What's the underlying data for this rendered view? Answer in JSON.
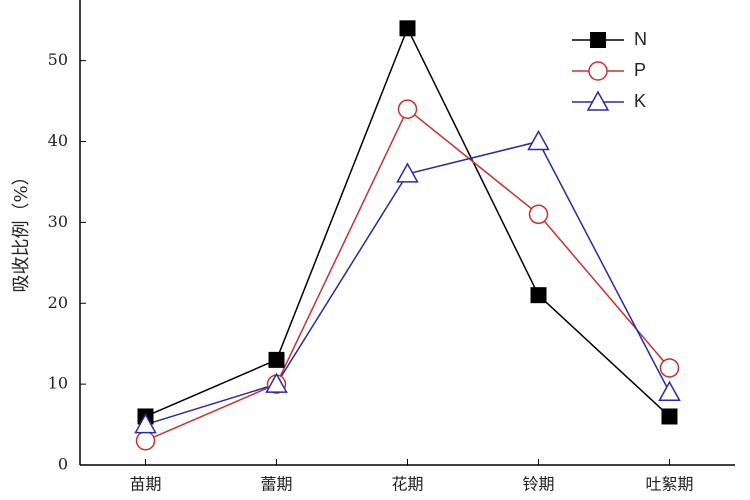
{
  "chart_data": {
    "type": "line",
    "y_label": "吸收比例（%）",
    "categories": [
      "苗期",
      "蕾期",
      "花期",
      "铃期",
      "吐絮期"
    ],
    "series": [
      {
        "name": "N",
        "color": "#000000",
        "marker": "square",
        "values": [
          6,
          13,
          54,
          21,
          6
        ]
      },
      {
        "name": "P",
        "color": "#c83232",
        "marker": "circle",
        "values": [
          3,
          10,
          44,
          31,
          12
        ]
      },
      {
        "name": "K",
        "color": "#2a2aa0",
        "marker": "triangle",
        "values": [
          5,
          10,
          36,
          40,
          9
        ]
      }
    ],
    "ylim": [
      0,
      57.5
    ],
    "yticks": [
      0,
      10,
      20,
      30,
      40,
      50
    ],
    "grid": false,
    "legend": "upper right"
  }
}
